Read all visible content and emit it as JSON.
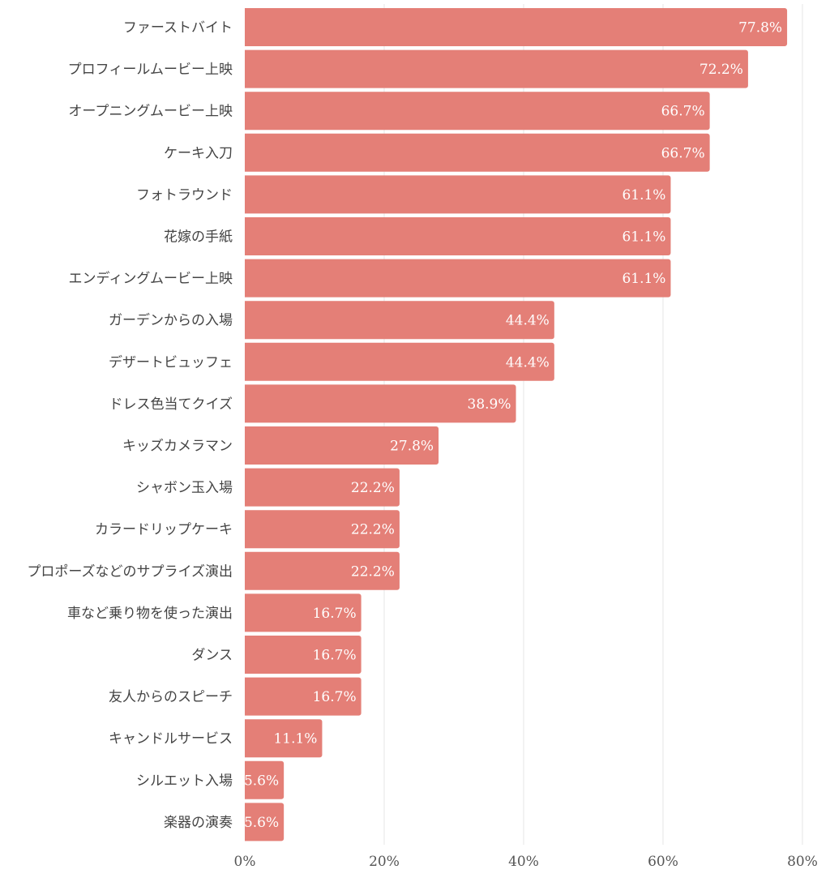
{
  "chart_data": {
    "type": "bar",
    "orientation": "horizontal",
    "title": "",
    "xlabel": "",
    "ylabel": "",
    "categories": [
      "ファーストバイト",
      "プロフィールムービー上映",
      "オープニングムービー上映",
      "ケーキ入刀",
      "フォトラウンド",
      "花嫁の手紙",
      "エンディングムービー上映",
      "ガーデンからの入場",
      "デザートビュッフェ",
      "ドレス色当てクイズ",
      "キッズカメラマン",
      "シャボン玉入場",
      "カラードリップケーキ",
      "プロポーズなどのサプライズ演出",
      "車など乗り物を使った演出",
      "ダンス",
      "友人からのスピーチ",
      "キャンドルサービス",
      "シルエット入場",
      "楽器の演奏"
    ],
    "values": [
      77.8,
      72.2,
      66.7,
      66.7,
      61.1,
      61.1,
      61.1,
      44.4,
      44.4,
      38.9,
      27.8,
      22.2,
      22.2,
      22.2,
      16.7,
      16.7,
      16.7,
      11.1,
      5.6,
      5.6
    ],
    "value_labels": [
      "77.8%",
      "72.2%",
      "66.7%",
      "66.7%",
      "61.1%",
      "61.1%",
      "61.1%",
      "44.4%",
      "44.4%",
      "38.9%",
      "27.8%",
      "22.2%",
      "22.2%",
      "22.2%",
      "16.7%",
      "16.7%",
      "16.7%",
      "11.1%",
      "5.6%",
      "5.6%"
    ],
    "xlim": [
      0,
      80
    ],
    "xticks": [
      0,
      20,
      40,
      60,
      80
    ],
    "xtick_labels": [
      "0%",
      "20%",
      "40%",
      "60%",
      "80%"
    ],
    "grid": true,
    "legend": "none",
    "bar_color": "#e47f77",
    "grid_color": "#e6e6e6"
  }
}
